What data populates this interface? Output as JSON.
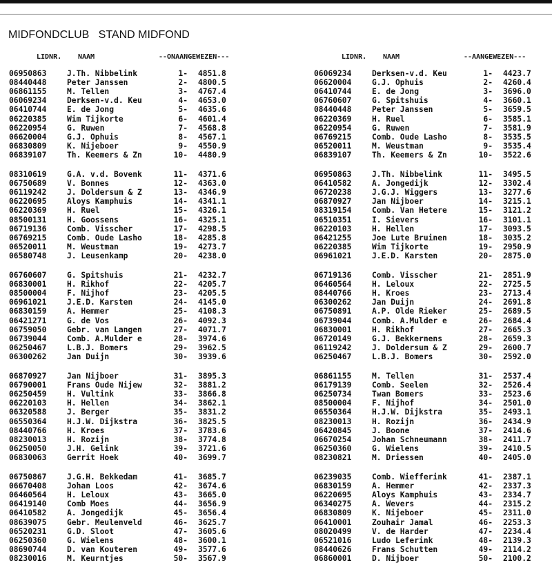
{
  "title": "MIDFONDCLUB   STAND MIDFOND",
  "tables": [
    {
      "headers": {
        "lidnr": "LIDNR.",
        "naam": "NAAM",
        "section": "--ONAANGEWEZEN---"
      },
      "rows": [
        [
          "06950863",
          "J.Th. Nibbelink",
          "1-",
          "4851.8"
        ],
        [
          "08440448",
          "Peter Janssen",
          "2-",
          "4800.5"
        ],
        [
          "06861155",
          "M. Tellen",
          "3-",
          "4767.4"
        ],
        [
          "06069234",
          "Derksen-v.d. Keu",
          "4-",
          "4653.0"
        ],
        [
          "06410744",
          "E. de Jong",
          "5-",
          "4635.6"
        ],
        [
          "06220385",
          "Wim Tijkorte",
          "6-",
          "4601.4"
        ],
        [
          "06220954",
          "G. Ruwen",
          "7-",
          "4568.8"
        ],
        [
          "06620004",
          "G.J. Ophuis",
          "8-",
          "4567.1"
        ],
        [
          "06830809",
          "K. Nijeboer",
          "9-",
          "4550.9"
        ],
        [
          "06839107",
          "Th. Keemers & Zn",
          "10-",
          "4480.9"
        ],
        [
          "08310619",
          "G.A. v.d. Bovenk",
          "11-",
          "4371.6"
        ],
        [
          "06750689",
          "V. Bonnes",
          "12-",
          "4363.0"
        ],
        [
          "06119242",
          "J. Doldersum & Z",
          "13-",
          "4346.9"
        ],
        [
          "06220695",
          "Aloys Kamphuis",
          "14-",
          "4341.1"
        ],
        [
          "06220369",
          "H. Ruel",
          "15-",
          "4326.1"
        ],
        [
          "08500131",
          "H. Goossens",
          "16-",
          "4325.1"
        ],
        [
          "06719136",
          "Comb. Visscher",
          "17-",
          "4298.5"
        ],
        [
          "06769215",
          "Comb. Oude Lasho",
          "18-",
          "4285.8"
        ],
        [
          "06520011",
          "M. Weustman",
          "19-",
          "4273.7"
        ],
        [
          "06580748",
          "J. Leusenkamp",
          "20-",
          "4238.0"
        ],
        [
          "06760607",
          "G. Spitshuis",
          "21-",
          "4232.7"
        ],
        [
          "06830001",
          "H. Rikhof",
          "22-",
          "4205.7"
        ],
        [
          "08500004",
          "F. Nijhof",
          "23-",
          "4205.5"
        ],
        [
          "06961021",
          "J.E.D. Karsten",
          "24-",
          "4145.0"
        ],
        [
          "06830159",
          "A. Hemmer",
          "25-",
          "4108.3"
        ],
        [
          "06421271",
          "G. de Vos",
          "26-",
          "4092.3"
        ],
        [
          "06759050",
          "Gebr. van Langen",
          "27-",
          "4071.7"
        ],
        [
          "06739044",
          "Comb. A.Mulder e",
          "28-",
          "3974.6"
        ],
        [
          "06250467",
          "L.B.J. Bomers",
          "29-",
          "3962.5"
        ],
        [
          "06300262",
          "Jan Duijn",
          "30-",
          "3939.6"
        ],
        [
          "06870927",
          "Jan Nijboer",
          "31-",
          "3895.3"
        ],
        [
          "06790001",
          "Frans Oude Nijew",
          "32-",
          "3881.2"
        ],
        [
          "06250459",
          "H. Vultink",
          "33-",
          "3866.8"
        ],
        [
          "06220103",
          "H. Hellen",
          "34-",
          "3862.1"
        ],
        [
          "06320588",
          "J. Berger",
          "35-",
          "3831.2"
        ],
        [
          "06550364",
          "H.J.W. Dijkstra",
          "36-",
          "3825.5"
        ],
        [
          "08440766",
          "H. Kroes",
          "37-",
          "3783.6"
        ],
        [
          "08230013",
          "H. Rozijn",
          "38-",
          "3774.8"
        ],
        [
          "06250050",
          "J.H. Gelink",
          "39-",
          "3721.6"
        ],
        [
          "06830063",
          "Gerrit Hoek",
          "40-",
          "3699.7"
        ],
        [
          "06750867",
          "J.G.H. Bekkedam",
          "41-",
          "3685.7"
        ],
        [
          "06670408",
          "Johan Loos",
          "42-",
          "3674.6"
        ],
        [
          "06460564",
          "H. Leloux",
          "43-",
          "3665.0"
        ],
        [
          "06419140",
          "Comb Moes",
          "44-",
          "3656.9"
        ],
        [
          "06410582",
          "A. Jongedijk",
          "45-",
          "3656.4"
        ],
        [
          "08639075",
          "Gebr. Meulenveld",
          "46-",
          "3625.7"
        ],
        [
          "06520231",
          "G.D. Sloot",
          "47-",
          "3605.6"
        ],
        [
          "06250360",
          "G. Wielens",
          "48-",
          "3600.1"
        ],
        [
          "08690744",
          "D. van Kouteren",
          "49-",
          "3577.6"
        ],
        [
          "08230016",
          "M. Keurntjes",
          "50-",
          "3567.9"
        ]
      ]
    },
    {
      "headers": {
        "lidnr": "LIDNR.",
        "naam": "NAAM",
        "section": "--AANGEWEZEN---"
      },
      "rows": [
        [
          "06069234",
          "Derksen-v.d. Keu",
          "1-",
          "4423.7"
        ],
        [
          "06620004",
          "G.J. Ophuis",
          "2-",
          "4260.4"
        ],
        [
          "06410744",
          "E. de Jong",
          "3-",
          "3696.0"
        ],
        [
          "06760607",
          "G. Spitshuis",
          "4-",
          "3660.1"
        ],
        [
          "08440448",
          "Peter Janssen",
          "5-",
          "3659.5"
        ],
        [
          "06220369",
          "H. Ruel",
          "6-",
          "3585.1"
        ],
        [
          "06220954",
          "G. Ruwen",
          "7-",
          "3581.9"
        ],
        [
          "06769215",
          "Comb. Oude Lasho",
          "8-",
          "3535.5"
        ],
        [
          "06520011",
          "M. Weustman",
          "9-",
          "3535.4"
        ],
        [
          "06839107",
          "Th. Keemers & Zn",
          "10-",
          "3522.6"
        ],
        [
          "06950863",
          "J.Th. Nibbelink",
          "11-",
          "3495.5"
        ],
        [
          "06410582",
          "A. Jongedijk",
          "12-",
          "3302.4"
        ],
        [
          "06720238",
          "J.G.J. Wiggers",
          "13-",
          "3277.6"
        ],
        [
          "06870927",
          "Jan Nijboer",
          "14-",
          "3215.1"
        ],
        [
          "08319154",
          "Comb. Van Hetere",
          "15-",
          "3121.2"
        ],
        [
          "06510351",
          "I. Sievers",
          "16-",
          "3101.1"
        ],
        [
          "06220103",
          "H. Hellen",
          "17-",
          "3093.5"
        ],
        [
          "06421255",
          "Joe Lute Bruinen",
          "18-",
          "3035.2"
        ],
        [
          "06220385",
          "Wim Tijkorte",
          "19-",
          "2950.9"
        ],
        [
          "06961021",
          "J.E.D. Karsten",
          "20-",
          "2875.0"
        ],
        [
          "06719136",
          "Comb. Visscher",
          "21-",
          "2851.9"
        ],
        [
          "06460564",
          "H. Leloux",
          "22-",
          "2725.5"
        ],
        [
          "08440766",
          "H. Kroes",
          "23-",
          "2713.4"
        ],
        [
          "06300262",
          "Jan Duijn",
          "24-",
          "2691.8"
        ],
        [
          "06750891",
          "A.P. Olde Rieker",
          "25-",
          "2689.5"
        ],
        [
          "06739044",
          "Comb. A.Mulder e",
          "26-",
          "2684.4"
        ],
        [
          "06830001",
          "H. Rikhof",
          "27-",
          "2665.3"
        ],
        [
          "06720149",
          "G.J. Bekkernens",
          "28-",
          "2659.3"
        ],
        [
          "06119242",
          "J. Doldersum & Z",
          "29-",
          "2600.7"
        ],
        [
          "06250467",
          "L.B.J. Bomers",
          "30-",
          "2592.0"
        ],
        [
          "06861155",
          "M. Tellen",
          "31-",
          "2537.4"
        ],
        [
          "06179139",
          "Comb. Seelen",
          "32-",
          "2526.4"
        ],
        [
          "06250734",
          "Twan Bomers",
          "33-",
          "2523.6"
        ],
        [
          "08500004",
          "F. Nijhof",
          "34-",
          "2501.0"
        ],
        [
          "06550364",
          "H.J.W. Dijkstra",
          "35-",
          "2493.1"
        ],
        [
          "08230013",
          "H. Rozijn",
          "36-",
          "2434.9"
        ],
        [
          "06420845",
          "J. Boone",
          "37-",
          "2414.6"
        ],
        [
          "06670254",
          "Johan Schneumann",
          "38-",
          "2411.7"
        ],
        [
          "06250360",
          "G. Wielens",
          "39-",
          "2410.5"
        ],
        [
          "08230821",
          "M. Driessen",
          "40-",
          "2405.0"
        ],
        [
          "06239035",
          "Comb. Wiefferink",
          "41-",
          "2387.1"
        ],
        [
          "06830159",
          "A. Hemmer",
          "42-",
          "2337.3"
        ],
        [
          "06220695",
          "Aloys Kamphuis",
          "43-",
          "2334.7"
        ],
        [
          "06340275",
          "A. Wevers",
          "44-",
          "2315.2"
        ],
        [
          "06830809",
          "K. Nijeboer",
          "45-",
          "2311.0"
        ],
        [
          "06410001",
          "Zouhair Jamal",
          "46-",
          "2253.3"
        ],
        [
          "08020499",
          "V. de Harder",
          "47-",
          "2234.4"
        ],
        [
          "06521016",
          "Ludo Leferink",
          "48-",
          "2139.3"
        ],
        [
          "08440626",
          "Frans Schutten",
          "49-",
          "2114.2"
        ],
        [
          "06860001",
          "D. Nijboer",
          "50-",
          "2100.2"
        ]
      ]
    }
  ]
}
